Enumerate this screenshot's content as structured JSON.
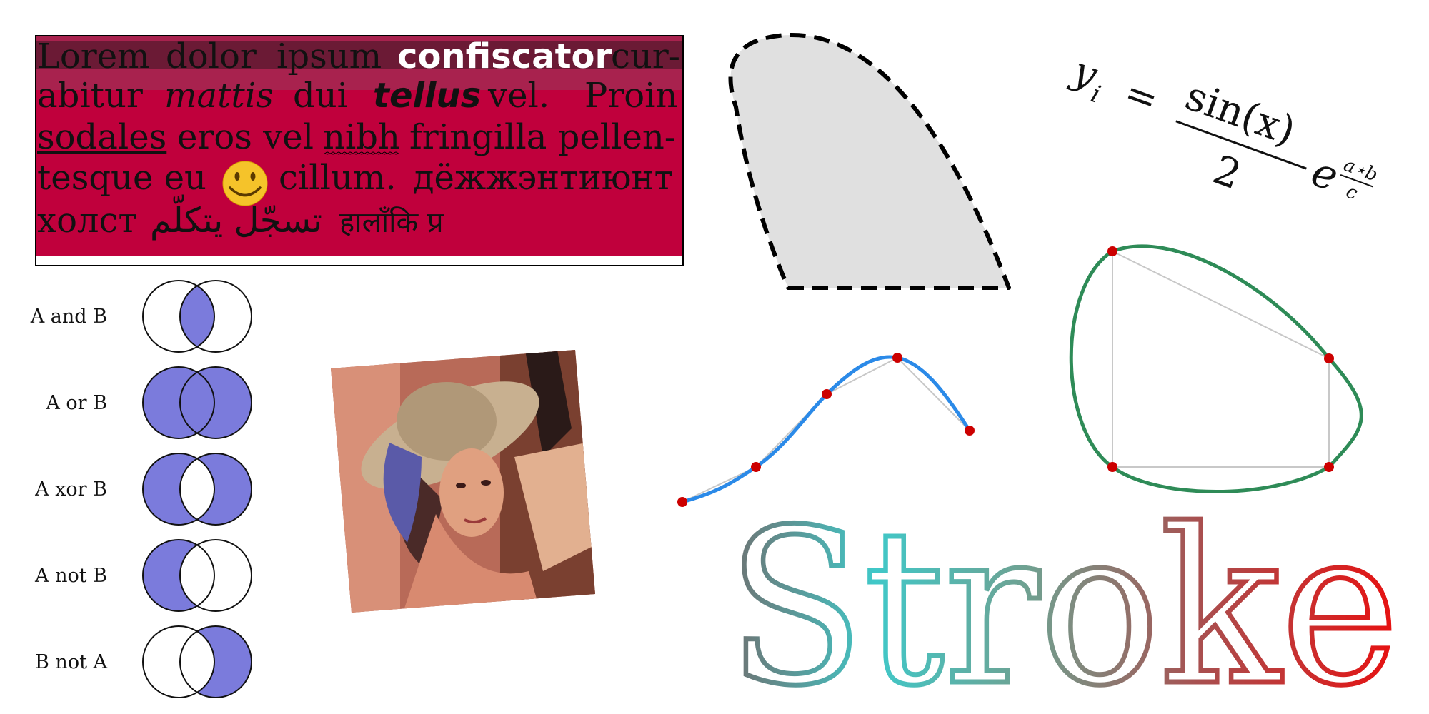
{
  "text_block": {
    "line1": {
      "w1": "Lorem",
      "w2": "dolor",
      "w3": "ipsum",
      "highlight": "confiscator",
      "tail": "cur-"
    },
    "line2": {
      "w1": "abitur",
      "italic": "mattis",
      "w2": "dui",
      "bold_italic": "tellus",
      "w3": "vel.",
      "w4": "Proin"
    },
    "line3": {
      "underlined": "sodales",
      "w1": "eros vel",
      "wavy": "nibh",
      "w2": "fringilla pellen-"
    },
    "line4": {
      "w1": "tesque eu",
      "emoji": "🙂",
      "w2": "cillum.",
      "cyrillic": "дёжжэнтиюнт"
    },
    "line5": {
      "cyrillic": "холст",
      "arabic": "تسجّل يتكلّم",
      "devanagari": "हालाँकि प्र"
    },
    "colors": {
      "background": "#c0003c",
      "highlight_band": "#a8224e",
      "selection": "#6b1a35"
    }
  },
  "venn": {
    "rows": [
      {
        "label": "A and B"
      },
      {
        "label": "A or B"
      },
      {
        "label": "A xor B"
      },
      {
        "label": "A not B"
      },
      {
        "label": "B not A"
      }
    ],
    "fill_color": "#7b7bdc"
  },
  "photo": {
    "name": "portrait-photo"
  },
  "shape": {
    "fill": "#e0e0e0",
    "stroke": "#000000"
  },
  "formula": {
    "lhs": "y",
    "lhs_sub": "i",
    "eq": "=",
    "numerator": "sin(x)",
    "denominator": "2",
    "e": "e",
    "exp_num": "a⋆b",
    "exp_den": "c"
  },
  "spline": {
    "color": "#2b8ae8",
    "point_color": "#cc0000"
  },
  "closed_curve": {
    "color": "#2e8b57",
    "point_color": "#cc0000"
  },
  "stroke_text": {
    "text": "Stroke",
    "gradient": [
      "#6b6b6b",
      "#40c8c0",
      "#a0605a",
      "#e01010"
    ]
  }
}
